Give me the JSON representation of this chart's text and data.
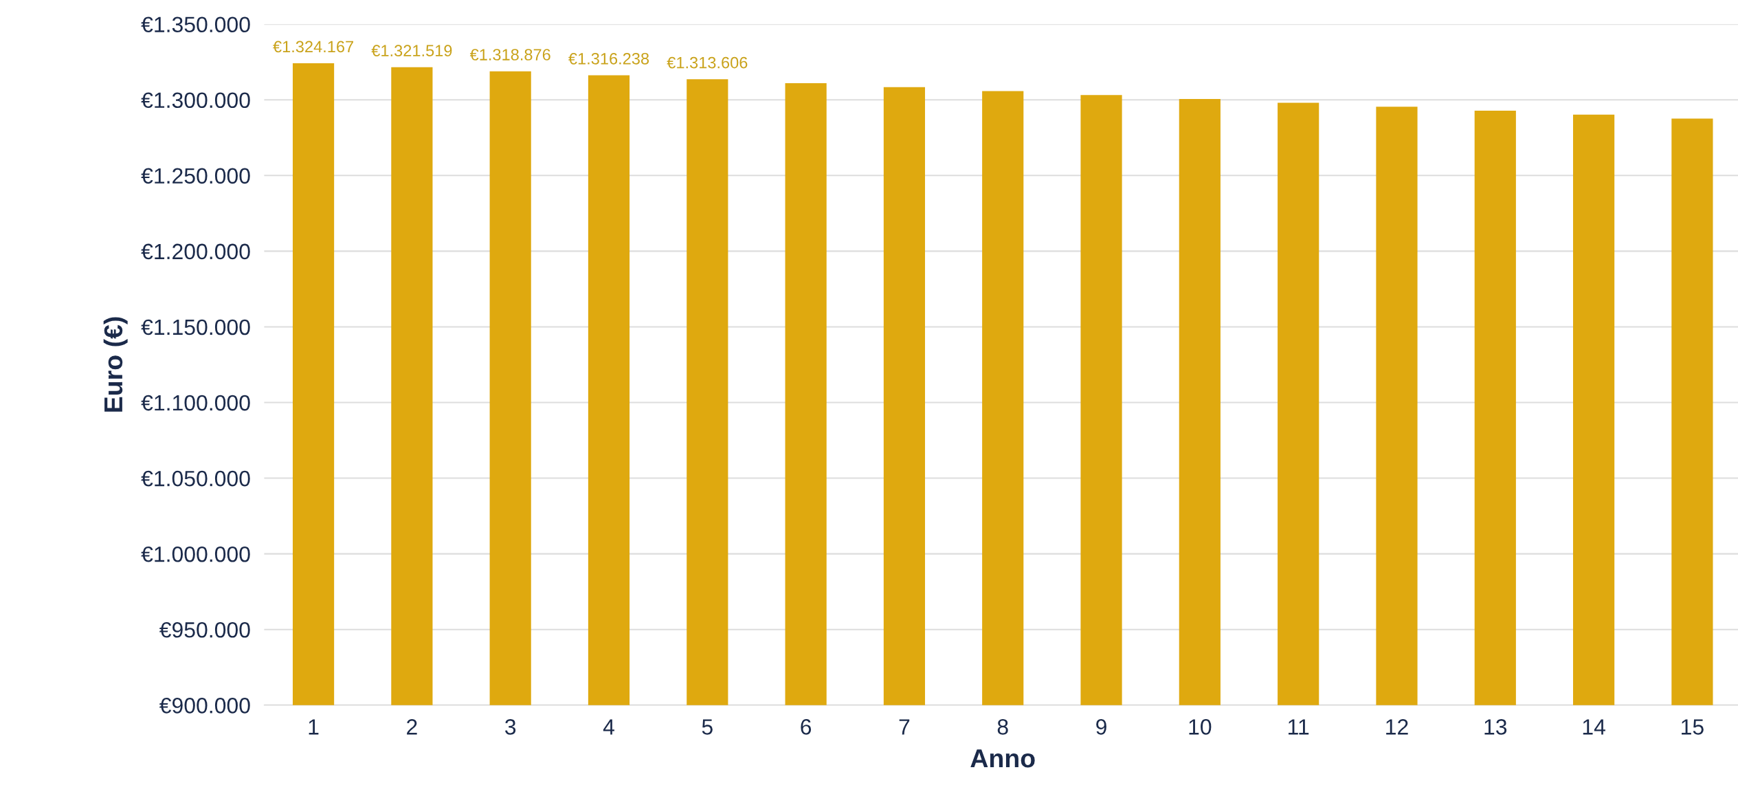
{
  "chart_data": {
    "type": "bar",
    "xlabel": "Anno",
    "ylabel": "Euro (€)",
    "categories": [
      "1",
      "2",
      "3",
      "4",
      "5",
      "6",
      "7",
      "8",
      "9",
      "10",
      "11",
      "12",
      "13",
      "14",
      "15"
    ],
    "values": [
      1324167,
      1321519,
      1318876,
      1316238,
      1313606,
      1311000,
      1308400,
      1305800,
      1303200,
      1300600,
      1298000,
      1295400,
      1292800,
      1290200,
      1287600
    ],
    "value_labels": [
      "€1.324.167",
      "€1.321.519",
      "€1.318.876",
      "€1.316.238",
      "€1.313.606",
      null,
      null,
      null,
      null,
      null,
      null,
      null,
      null,
      null,
      null
    ],
    "color": "#dfa90f",
    "ylim": [
      900000,
      1350000
    ],
    "yticks": [
      {
        "value": 900000,
        "label": "€900.000"
      },
      {
        "value": 950000,
        "label": "€950.000"
      },
      {
        "value": 1000000,
        "label": "€1.000.000"
      },
      {
        "value": 1050000,
        "label": "€1.050.000"
      },
      {
        "value": 1100000,
        "label": "€1.100.000"
      },
      {
        "value": 1150000,
        "label": "€1.150.000"
      },
      {
        "value": 1200000,
        "label": "€1.200.000"
      },
      {
        "value": 1250000,
        "label": "€1.250.000"
      },
      {
        "value": 1300000,
        "label": "€1.300.000"
      },
      {
        "value": 1350000,
        "label": "€1.350.000"
      }
    ],
    "grid": "y",
    "legend": false
  }
}
